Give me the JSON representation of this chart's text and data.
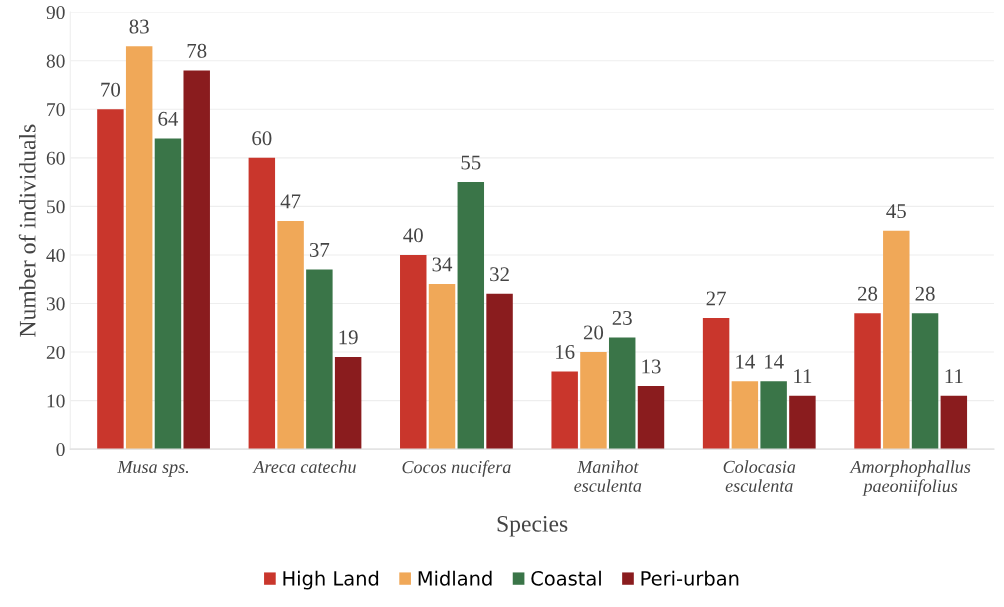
{
  "chart_data": {
    "type": "bar",
    "xlabel": "Species",
    "ylabel": "Number of individuals",
    "categories": [
      "Musa sps.",
      "Areca catechu",
      "Cocos nucifera",
      "Manihot\nesculenta",
      "Colocasia\nesculenta",
      "Amorphophallus\npaeoniifolius"
    ],
    "series": [
      {
        "name": "High Land",
        "color": "#c9362c",
        "values": [
          70,
          60,
          40,
          16,
          27,
          28
        ]
      },
      {
        "name": "Midland",
        "color": "#f0a858",
        "values": [
          83,
          47,
          34,
          20,
          14,
          45
        ]
      },
      {
        "name": "Coastal",
        "color": "#3a7548",
        "values": [
          64,
          37,
          55,
          23,
          14,
          28
        ]
      },
      {
        "name": "Peri-urban",
        "color": "#8a1c1e",
        "values": [
          78,
          19,
          32,
          13,
          11,
          11
        ]
      }
    ],
    "ylim": [
      0,
      90
    ],
    "yticks": [
      0,
      10,
      20,
      30,
      40,
      50,
      60,
      70,
      80,
      90
    ],
    "grid": "y",
    "legend": "bottom",
    "data_labels": true
  }
}
